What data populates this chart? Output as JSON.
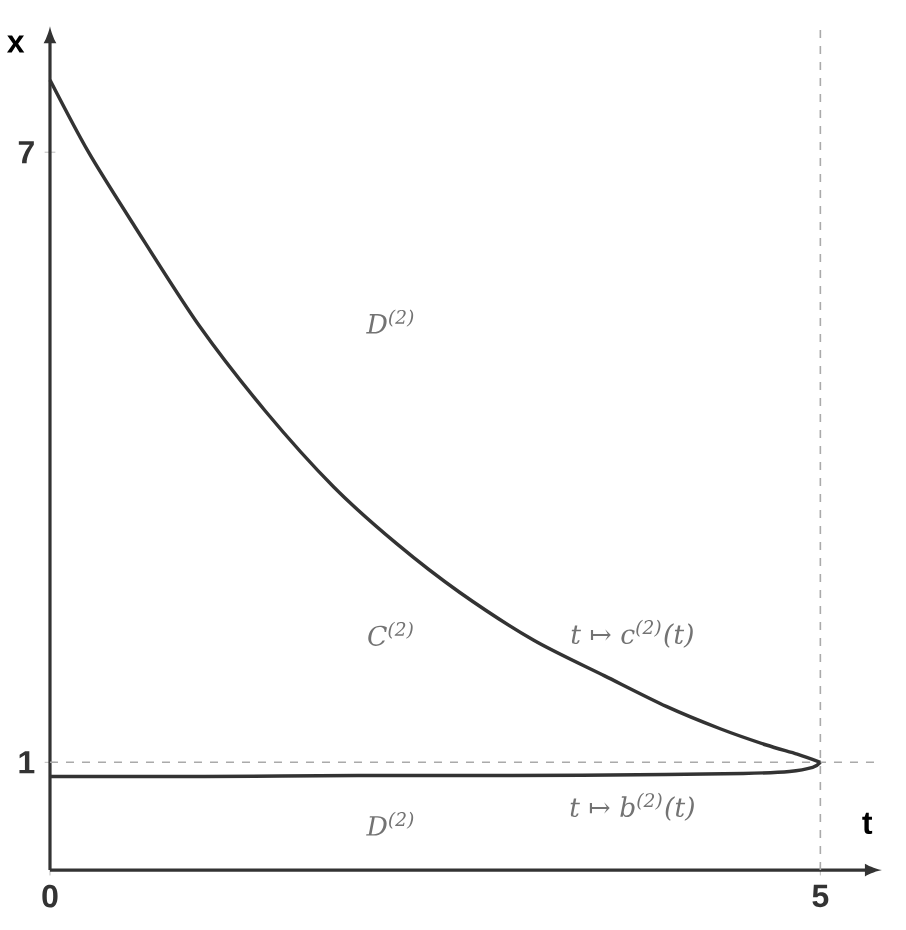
{
  "chart_data": {
    "type": "line",
    "xlabel": "t",
    "ylabel": "x",
    "xlim": [
      0,
      5.4
    ],
    "ylim": [
      -0.06,
      8.24
    ],
    "xticks": [
      0,
      5
    ],
    "yticks": [
      1,
      7
    ],
    "grid": false,
    "marker": "none",
    "line_style": "solid",
    "series": [
      {
        "color": "#333333",
        "x": [
          0,
          0.25,
          0.55,
          0.97,
          1.4,
          1.84,
          2.25,
          2.66,
          3.14,
          3.6,
          4.0,
          4.35,
          4.65,
          4.85,
          5.0
        ],
        "values": [
          7.71,
          7.0,
          6.27,
          5.29,
          4.45,
          3.71,
          3.15,
          2.67,
          2.2,
          1.85,
          1.55,
          1.33,
          1.17,
          1.08,
          1.0
        ]
      },
      {
        "color": "#333333",
        "x": [
          0,
          1.0,
          2.0,
          3.0,
          4.0,
          4.5,
          4.8,
          4.95,
          5.0
        ],
        "values": [
          0.86,
          0.86,
          0.87,
          0.87,
          0.88,
          0.89,
          0.91,
          0.95,
          1.0
        ]
      }
    ],
    "ref_lines": [
      {
        "axis": "x",
        "value": 5,
        "color": "#aaaaaa",
        "line_style": "dashed"
      },
      {
        "axis": "y",
        "value": 1,
        "color": "#aaaaaa",
        "line_style": "dashed"
      }
    ],
    "annotations": [
      "D$^{(2)}$",
      "C$^{(2)}$",
      "t ↦ c$^{(2)}$(t)",
      "t ↦ b$^{(2)}$(t)",
      "D$^{(2)}$"
    ]
  }
}
